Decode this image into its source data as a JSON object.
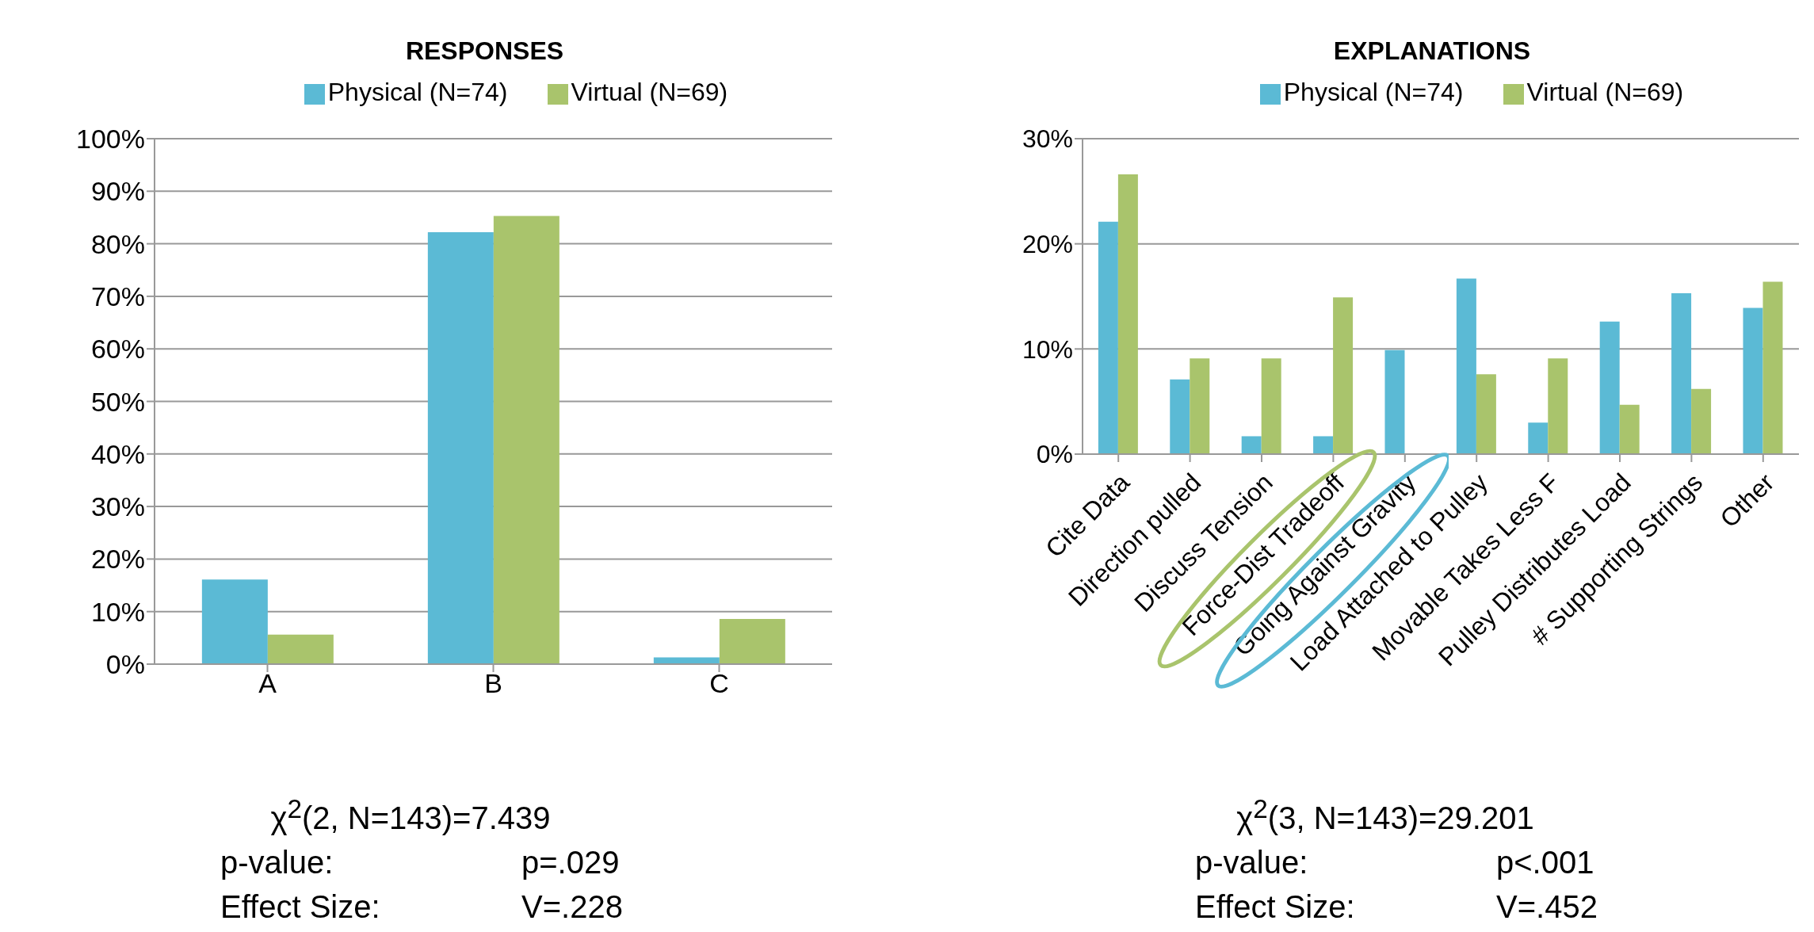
{
  "chart_data": [
    {
      "type": "bar",
      "title": "RESPONSES",
      "categories": [
        "A",
        "B",
        "C"
      ],
      "series": [
        {
          "name": "Physical (N=74)",
          "color": "#5bbad5",
          "values": [
            16.1,
            82.2,
            1.3
          ]
        },
        {
          "name": "Virtual (N=69)",
          "color": "#a9c46c",
          "values": [
            5.6,
            85.3,
            8.6
          ]
        }
      ],
      "ylim": [
        0,
        100
      ],
      "yticks": [
        {
          "value": 0,
          "label": "0%"
        },
        {
          "value": 10,
          "label": "10%"
        },
        {
          "value": 20,
          "label": "20%"
        },
        {
          "value": 30,
          "label": "30%"
        },
        {
          "value": 40,
          "label": "40%"
        },
        {
          "value": 50,
          "label": "50%"
        },
        {
          "value": 60,
          "label": "60%"
        },
        {
          "value": 70,
          "label": "70%"
        },
        {
          "value": 80,
          "label": "80%"
        },
        {
          "value": 90,
          "label": "90%"
        },
        {
          "value": 100,
          "label": "100%"
        }
      ],
      "grid": "y",
      "legend": "top",
      "annotations": [
        "χ$^{2}$(2, N=143)=7.439",
        "p-value:",
        "p=.029",
        "Effect Size:",
        "V=.228"
      ]
    },
    {
      "type": "bar",
      "title": "EXPLANATIONS",
      "categories": [
        "Cite Data",
        "Direction pulled",
        "Discuss Tension",
        "Force-Dist Tradeoff",
        "Going Against Gravity",
        "Load Attached to Pulley",
        "Movable Takes Less F",
        "Pulley Distributes Load",
        "# Supporting Strings",
        "Other"
      ],
      "series": [
        {
          "name": "Physical (N=74)",
          "color": "#5bbad5",
          "values": [
            22.1,
            7.1,
            1.7,
            1.7,
            9.9,
            16.7,
            3.0,
            12.6,
            15.3,
            13.9
          ]
        },
        {
          "name": "Virtual (N=69)",
          "color": "#a9c46c",
          "values": [
            26.6,
            9.1,
            9.1,
            14.9,
            0,
            7.6,
            9.1,
            4.7,
            6.2,
            16.4
          ]
        }
      ],
      "ylim": [
        0,
        30
      ],
      "yticks": [
        {
          "value": 0,
          "label": "0%"
        },
        {
          "value": 10,
          "label": "10%"
        },
        {
          "value": 20,
          "label": "20%"
        },
        {
          "value": 30,
          "label": "30%"
        }
      ],
      "grid": "y",
      "legend": "top",
      "annotations": [
        "χ$^{2}$(3, N=143)=29.201",
        "p-value:",
        "p<.001",
        "Effect Size:",
        "V=.452"
      ]
    }
  ]
}
